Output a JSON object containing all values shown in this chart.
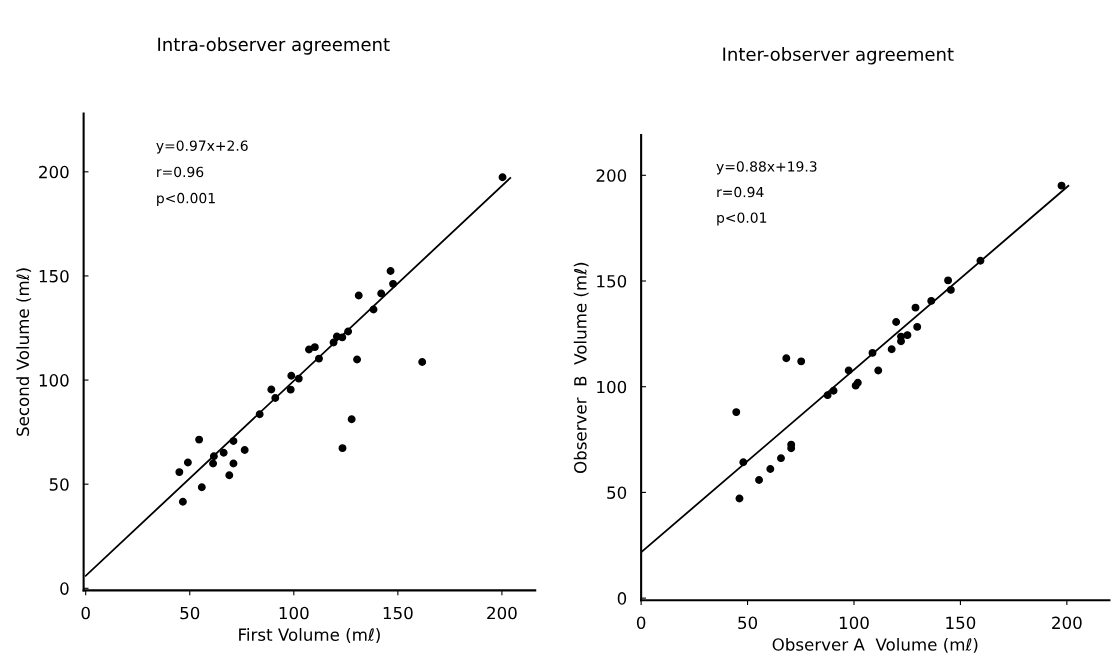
{
  "chart_data": [
    {
      "type": "scatter",
      "title": "Intra-observer agreement",
      "xlabel": "First Volume (mℓ)",
      "ylabel": "Second Volume (mℓ)",
      "xlim": [
        -1,
        216
      ],
      "ylim": [
        -1,
        228
      ],
      "xticks": [
        0,
        50,
        100,
        150,
        200
      ],
      "yticks": [
        0,
        50,
        100,
        150,
        200
      ],
      "grid": false,
      "marker": "circle",
      "annotations": [
        "y=0.97x+2.6",
        "r=0.96",
        "p<0.001"
      ],
      "series": [
        {
          "color": "#000000",
          "x": [
            45.0,
            46.7,
            49.1,
            54.5,
            55.8,
            61.2,
            61.6,
            66.3,
            69.0,
            71.0,
            71.0,
            76.4,
            83.6,
            89.2,
            91.1,
            98.5,
            98.8,
            102.4,
            107.3,
            110.1,
            112.1,
            119.1,
            120.7,
            123.3,
            123.4,
            126.1,
            127.8,
            130.4,
            131.2,
            138.3,
            142.0,
            146.5,
            147.7,
            161.7,
            200.3
          ],
          "values": [
            55.8,
            41.6,
            60.4,
            71.4,
            48.5,
            59.9,
            63.4,
            65.1,
            54.3,
            59.9,
            70.7,
            66.4,
            83.6,
            95.5,
            91.4,
            95.4,
            102.1,
            100.7,
            114.7,
            115.8,
            110.3,
            118.0,
            120.9,
            120.5,
            67.3,
            123.3,
            81.2,
            109.9,
            140.6,
            133.9,
            141.6,
            152.4,
            146.2,
            108.7,
            197.4
          ]
        },
        {
          "type": "line",
          "color": "#000000",
          "marker": "none",
          "line_style": "solid",
          "x": [
            0,
            204
          ],
          "values": [
            6,
            197
          ]
        }
      ]
    },
    {
      "type": "scatter",
      "title": "Inter-observer agreement",
      "xlabel": "Observer A  Volume (mℓ)",
      "ylabel": "Observer  B  Volume (mℓ)",
      "xlim": [
        0,
        220
      ],
      "ylim": [
        -1,
        219
      ],
      "xticks": [
        0,
        50,
        100,
        150,
        200
      ],
      "yticks": [
        0,
        50,
        100,
        150,
        200
      ],
      "grid": false,
      "marker": "circle",
      "annotations": [
        "y=0.88x+19.3",
        "r=0.94",
        "p<0.01"
      ],
      "series": [
        {
          "color": "#000000",
          "x": [
            44.7,
            46.2,
            48.0,
            55.4,
            60.7,
            65.7,
            68.2,
            70.5,
            70.5,
            75.2,
            87.6,
            90.4,
            97.5,
            100.8,
            101.8,
            108.7,
            111.4,
            117.7,
            119.8,
            122.1,
            122.1,
            125.1,
            128.9,
            129.7,
            136.3,
            144.2,
            145.5,
            159.4,
            197.5
          ],
          "values": [
            88.0,
            47.1,
            64.3,
            55.9,
            61.1,
            66.2,
            113.5,
            72.6,
            70.9,
            112.0,
            96.0,
            98.1,
            107.7,
            100.5,
            101.9,
            116.0,
            107.7,
            117.7,
            130.6,
            123.7,
            121.5,
            124.4,
            137.4,
            128.3,
            140.6,
            150.3,
            145.8,
            159.6,
            195.1
          ]
        },
        {
          "type": "line",
          "color": "#000000",
          "marker": "none",
          "line_style": "solid",
          "x": [
            0,
            200.7
          ],
          "values": [
            21.7,
            195.0
          ]
        }
      ]
    }
  ]
}
